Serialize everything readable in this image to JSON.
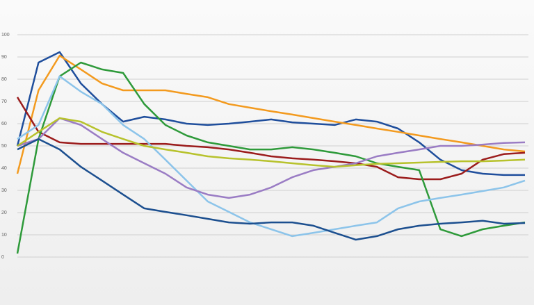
{
  "chart_data": {
    "type": "line",
    "categories": [
      null,
      null,
      null,
      null,
      null,
      null,
      null,
      null,
      null,
      null,
      null,
      null,
      null,
      null,
      null,
      null,
      null,
      null,
      null,
      null,
      null,
      null,
      null,
      null,
      null
    ],
    "ylim": [
      0,
      100
    ],
    "yticks": [
      0,
      10,
      20,
      30,
      40,
      50,
      60,
      70,
      80,
      90,
      100
    ],
    "grid": true,
    "series": [
      {
        "color": "#1f4e9c",
        "values": [
          50,
          87.5,
          92.2,
          78.1,
          68.8,
          60.9,
          63.1,
          61.9,
          60,
          59.4,
          60,
          60.9,
          61.9,
          60.6,
          60,
          59.4,
          61.9,
          60.9,
          57.8,
          51.6,
          43.8,
          39.1,
          37.5,
          36.9,
          36.9
        ]
      },
      {
        "color": "#f39a1e",
        "values": [
          37.5,
          75,
          90.6,
          84.4,
          78.1,
          75,
          75,
          75,
          73.4,
          71.9,
          68.8,
          67.2,
          65.6,
          64.1,
          62.5,
          60.9,
          59.4,
          57.8,
          56.3,
          54.7,
          53.1,
          51.6,
          50,
          48.4,
          47.5
        ]
      },
      {
        "color": "#9b1c1c",
        "values": [
          71.9,
          56.3,
          51.6,
          50.9,
          50.9,
          50.9,
          50.9,
          50.9,
          50,
          49.4,
          48.4,
          46.9,
          45.3,
          44.4,
          43.8,
          43.1,
          42.2,
          40.6,
          35.9,
          35,
          35,
          37.5,
          43.8,
          46.3,
          46.9
        ]
      },
      {
        "color": "#2e9a3a",
        "values": [
          1.6,
          53.1,
          81.3,
          87.5,
          84.4,
          82.8,
          68.8,
          59.4,
          54.7,
          51.6,
          50,
          48.4,
          48.4,
          49.4,
          48.4,
          46.9,
          45.3,
          42.2,
          40.6,
          39.1,
          12.5,
          9.4,
          12.5,
          14.1,
          15.6
        ]
      },
      {
        "color": "#8cc4ea",
        "values": [
          53.1,
          59.4,
          81.3,
          74.4,
          68.8,
          59.4,
          53.1,
          43.8,
          34.4,
          25,
          20.3,
          15.6,
          12.5,
          9.4,
          10.9,
          12.5,
          14.1,
          15.6,
          21.9,
          25,
          26.6,
          28.1,
          29.7,
          31.3,
          34.4
        ]
      },
      {
        "color": "#9a7cc4",
        "values": [
          50,
          53.1,
          62.5,
          59.4,
          53.1,
          46.9,
          42.2,
          37.5,
          31.3,
          28.1,
          26.6,
          28.1,
          31.3,
          35.9,
          39.1,
          40.6,
          42.2,
          45.3,
          46.9,
          48.4,
          50,
          50,
          50.6,
          51.3,
          51.6
        ]
      },
      {
        "color": "#b7c22c",
        "values": [
          50,
          56.3,
          62.5,
          60.9,
          56.3,
          53.1,
          50,
          48.4,
          46.9,
          45.3,
          44.4,
          43.8,
          43.1,
          42.2,
          41.3,
          40.6,
          41.3,
          41.9,
          42.2,
          42.5,
          42.8,
          43.1,
          43.1,
          43.4,
          43.8
        ]
      },
      {
        "color": "#1c4f8f",
        "values": [
          48.4,
          53.1,
          48.4,
          40.6,
          34.4,
          28.1,
          21.9,
          20.3,
          18.8,
          17.2,
          15.6,
          15,
          15.6,
          15.6,
          14.1,
          10.9,
          7.8,
          9.4,
          12.5,
          14.1,
          15,
          15.6,
          16.3,
          15,
          15.3
        ]
      }
    ]
  }
}
